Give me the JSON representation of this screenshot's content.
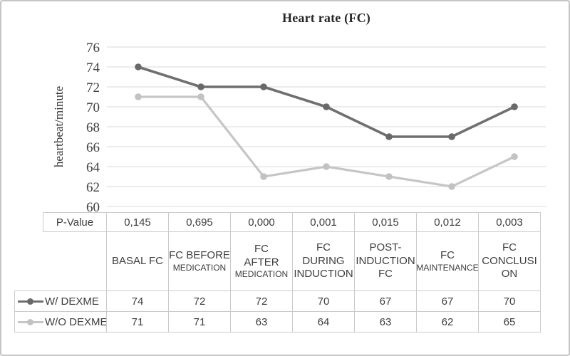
{
  "figure": {
    "border_color": "#c6c6c6",
    "background": "#ffffff"
  },
  "colors": {
    "grid": "#e0e0e0",
    "axis_text": "#404040",
    "table_border": "#cbcbcb",
    "table_text": "#3d3d3d",
    "series_dark": "#6f6f6f",
    "series_light": "#c6c6c6"
  },
  "chart_data": {
    "type": "line",
    "title": "Heart rate (FC)",
    "xlabel": "",
    "ylabel": "heartbeat/minute",
    "ylim": [
      60,
      76
    ],
    "yticks": [
      60,
      62,
      64,
      66,
      68,
      70,
      72,
      74,
      76
    ],
    "grid": true,
    "legend_position": "table-left",
    "categories": [
      "BASAL FC",
      "FC BEFORE MEDICATION",
      "FC AFTER MEDICATION",
      "FC DURING INDUCTION",
      "POST-INDUCTION FC",
      "FC MAINTENANCE",
      "FC CONCLUSION"
    ],
    "categories_display": [
      {
        "lines": [
          "BASAL FC"
        ],
        "small": []
      },
      {
        "lines": [
          "FC BEFORE",
          "MEDICATION"
        ],
        "small": [
          1
        ]
      },
      {
        "lines": [
          "FC",
          "AFTER",
          "MEDICATION"
        ],
        "small": [
          2
        ]
      },
      {
        "lines": [
          "FC",
          "DURING",
          "INDUCTION"
        ],
        "small": []
      },
      {
        "lines": [
          "POST-",
          "INDUCTION",
          "FC"
        ],
        "small": []
      },
      {
        "lines": [
          "FC",
          "MAINTENANCE"
        ],
        "small": [
          1
        ]
      },
      {
        "lines": [
          "FC",
          "CONCLUSI",
          "ON"
        ],
        "small": []
      }
    ],
    "series": [
      {
        "name": "W/ DEXME",
        "color": "#6f6f6f",
        "marker_color": "#696969",
        "values": [
          74,
          72,
          72,
          70,
          67,
          67,
          70
        ]
      },
      {
        "name": "W/O DEXME",
        "color": "#c6c6c6",
        "marker_color": "#c2c2c2",
        "values": [
          71,
          71,
          63,
          64,
          63,
          62,
          65
        ]
      }
    ],
    "p_row": {
      "label": "P-Value",
      "values": [
        "0,145",
        "0,695",
        "0,000",
        "0,001",
        "0,015",
        "0,012",
        "0,003"
      ]
    }
  }
}
